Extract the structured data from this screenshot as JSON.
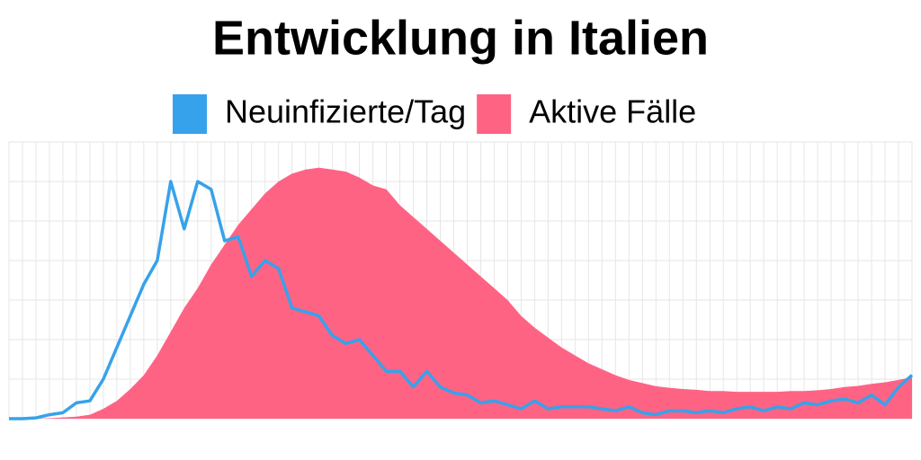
{
  "chart_data": {
    "type": "line",
    "title": "Entwicklung in Italien",
    "x": [
      0,
      1,
      2,
      3,
      4,
      5,
      6,
      7,
      8,
      9,
      10,
      11,
      12,
      13,
      14,
      15,
      16,
      17,
      18,
      19,
      20,
      21,
      22,
      23,
      24,
      25,
      26,
      27,
      28,
      29,
      30,
      31,
      32,
      33,
      34,
      35,
      36,
      37,
      38,
      39,
      40,
      41,
      42,
      43,
      44,
      45,
      46,
      47,
      48,
      49,
      50,
      51,
      52,
      53,
      54,
      55,
      56,
      57,
      58,
      59,
      60,
      61,
      62,
      63,
      64,
      65,
      66,
      67
    ],
    "xlim": [
      0,
      67
    ],
    "ylim": [
      0,
      7
    ],
    "yticks": [
      0,
      1,
      2,
      3,
      4,
      5,
      6,
      7
    ],
    "grid": true,
    "series": [
      {
        "name": "Neuinfizierte/Tag",
        "type": "line",
        "color": "#36a2eb",
        "values": [
          0,
          0,
          0.02,
          0.1,
          0.15,
          0.4,
          0.45,
          1.0,
          1.8,
          2.6,
          3.4,
          4.0,
          6.0,
          4.8,
          6.0,
          5.8,
          4.5,
          4.6,
          3.6,
          4.0,
          3.8,
          2.8,
          2.7,
          2.6,
          2.1,
          1.9,
          2.0,
          1.6,
          1.2,
          1.2,
          0.8,
          1.2,
          0.8,
          0.65,
          0.6,
          0.4,
          0.45,
          0.35,
          0.25,
          0.45,
          0.25,
          0.3,
          0.3,
          0.3,
          0.25,
          0.2,
          0.3,
          0.15,
          0.1,
          0.2,
          0.2,
          0.15,
          0.2,
          0.15,
          0.25,
          0.3,
          0.2,
          0.3,
          0.25,
          0.4,
          0.35,
          0.45,
          0.5,
          0.4,
          0.6,
          0.35,
          0.8,
          1.1
        ]
      },
      {
        "name": "Aktive Fälle",
        "type": "area",
        "color": "#ff6384",
        "values": [
          0,
          0,
          0,
          0.01,
          0.03,
          0.05,
          0.1,
          0.25,
          0.45,
          0.75,
          1.1,
          1.6,
          2.2,
          2.8,
          3.3,
          3.9,
          4.4,
          4.9,
          5.3,
          5.7,
          6.0,
          6.2,
          6.3,
          6.35,
          6.3,
          6.25,
          6.1,
          5.9,
          5.8,
          5.4,
          5.1,
          4.8,
          4.5,
          4.2,
          3.9,
          3.6,
          3.3,
          3.0,
          2.6,
          2.3,
          2.05,
          1.8,
          1.6,
          1.4,
          1.25,
          1.1,
          0.98,
          0.9,
          0.82,
          0.78,
          0.75,
          0.73,
          0.7,
          0.7,
          0.68,
          0.68,
          0.68,
          0.68,
          0.7,
          0.7,
          0.72,
          0.75,
          0.8,
          0.83,
          0.88,
          0.92,
          0.98,
          1.05
        ]
      }
    ]
  }
}
